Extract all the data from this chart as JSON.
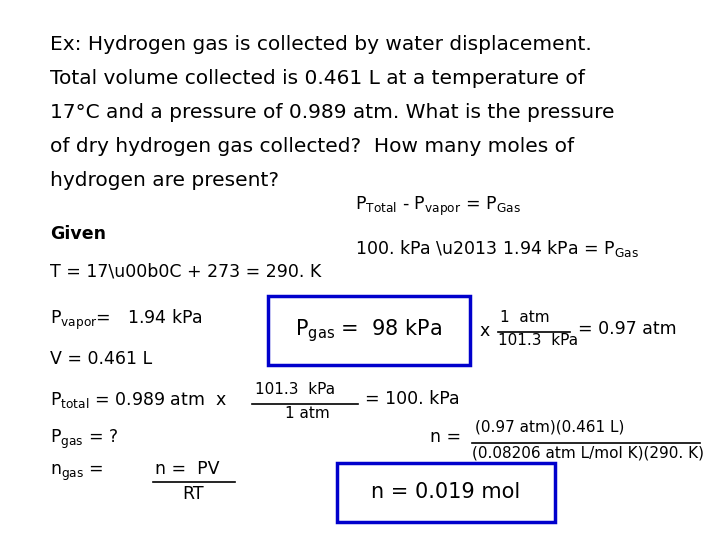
{
  "bg_color": "#ffffff",
  "box_color": "#0000cc",
  "title_lines": [
    "Ex: Hydrogen gas is collected by water displacement.",
    "Total volume collected is 0.461 L at a temperature of",
    "17°C and a pressure of 0.989 atm. What is the pressure",
    "of dry hydrogen gas collected?  How many moles of",
    "hydrogen are present?"
  ],
  "font_size_title": 14.5,
  "font_size_body": 12.5,
  "font_size_small": 11.0,
  "font_size_box": 15.0
}
